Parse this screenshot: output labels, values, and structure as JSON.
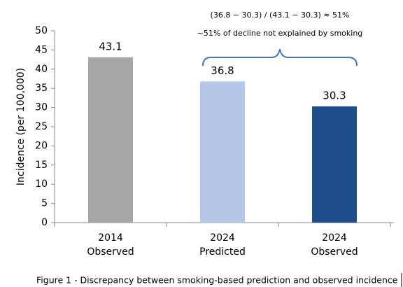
{
  "chart_data": {
    "type": "bar",
    "y_label": "Incidence (per 100,000)",
    "categories": [
      [
        "2014",
        "Observed"
      ],
      [
        "2024",
        "Predicted"
      ],
      [
        "2024",
        "Observed"
      ]
    ],
    "values": [
      43.1,
      36.8,
      30.3
    ],
    "colors": [
      "#a6a6a6",
      "#b4c7e7",
      "#1f4e8c"
    ],
    "ylim": [
      0,
      50
    ],
    "yticks": [
      0,
      5,
      10,
      15,
      20,
      25,
      30,
      35,
      40,
      45,
      50
    ],
    "annotations": [
      "(36.8 − 30.3) / (43.1 − 30.3) ≈ 51%",
      "~51% of decline not explained by smoking"
    ],
    "caption": "Figure 1 - Discrepancy between smoking-based prediction and observed incidence"
  }
}
